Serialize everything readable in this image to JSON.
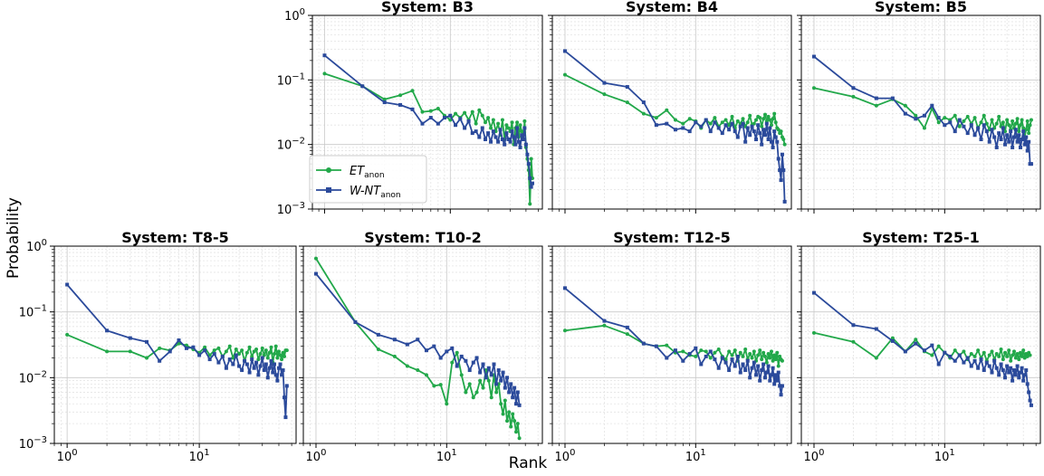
{
  "figure": {
    "ylabel": "Probability",
    "xlabel": "Rank"
  },
  "legend": {
    "entries": [
      {
        "base": "ET",
        "sub": "anon",
        "color": "#22a84a",
        "marker": "circle"
      },
      {
        "base": "W-NT",
        "sub": "anon",
        "color": "#2b4a9b",
        "marker": "square"
      }
    ],
    "placement": "lower-left"
  },
  "axis": {
    "ylim": [
      0.001,
      1
    ],
    "xlim": [
      0.8,
      54
    ],
    "scale": "log",
    "yticks": [
      {
        "value": 1,
        "base": "10",
        "exp": "0"
      },
      {
        "value": 0.1,
        "base": "10",
        "exp": "−1"
      },
      {
        "value": 0.01,
        "base": "10",
        "exp": "−2"
      },
      {
        "value": 0.001,
        "base": "10",
        "exp": "−3"
      }
    ],
    "xticks": [
      {
        "value": 1,
        "base": "10",
        "exp": "0"
      },
      {
        "value": 10,
        "base": "10",
        "exp": "1"
      }
    ],
    "grid": true
  },
  "chart_data": [
    {
      "type": "line",
      "title": "System: B3",
      "x_scale": "log",
      "y_scale": "log",
      "series": [
        {
          "name": "ET_anon",
          "values": [
            0.125,
            0.08,
            0.05,
            0.058,
            0.068,
            0.032,
            0.033,
            0.036,
            0.028,
            0.024,
            0.03,
            0.026,
            0.031,
            0.024,
            0.032,
            0.021,
            0.034,
            0.028,
            0.022,
            0.026,
            0.018,
            0.024,
            0.016,
            0.021,
            0.014,
            0.024,
            0.012,
            0.02,
            0.018,
            0.016,
            0.022,
            0.01,
            0.018,
            0.022,
            0.013,
            0.02,
            0.016,
            0.012,
            0.023,
            0.009,
            0.006,
            0.004,
            0.0012,
            0.006,
            0.003
          ]
        },
        {
          "name": "W-NT_anon",
          "values": [
            0.24,
            0.08,
            0.045,
            0.041,
            0.035,
            0.021,
            0.026,
            0.021,
            0.026,
            0.028,
            0.02,
            0.025,
            0.018,
            0.023,
            0.015,
            0.016,
            0.013,
            0.018,
            0.012,
            0.015,
            0.011,
            0.016,
            0.013,
            0.011,
            0.017,
            0.012,
            0.01,
            0.015,
            0.012,
            0.011,
            0.016,
            0.013,
            0.01,
            0.018,
            0.011,
            0.009,
            0.014,
            0.012,
            0.018,
            0.01,
            0.007,
            0.005,
            0.003,
            0.0022,
            0.0025
          ]
        }
      ]
    },
    {
      "type": "line",
      "title": "System: B4",
      "x_scale": "log",
      "y_scale": "log",
      "series": [
        {
          "name": "ET_anon",
          "values": [
            0.12,
            0.06,
            0.045,
            0.03,
            0.026,
            0.034,
            0.024,
            0.021,
            0.025,
            0.023,
            0.018,
            0.024,
            0.021,
            0.026,
            0.019,
            0.022,
            0.024,
            0.02,
            0.027,
            0.018,
            0.023,
            0.021,
            0.025,
            0.019,
            0.022,
            0.028,
            0.02,
            0.021,
            0.024,
            0.027,
            0.026,
            0.019,
            0.025,
            0.029,
            0.023,
            0.027,
            0.024,
            0.02,
            0.025,
            0.03,
            0.022,
            0.018,
            0.017,
            0.015,
            0.016,
            0.013,
            0.012,
            0.01
          ]
        },
        {
          "name": "W-NT_anon",
          "values": [
            0.28,
            0.09,
            0.078,
            0.045,
            0.02,
            0.021,
            0.017,
            0.018,
            0.016,
            0.022,
            0.019,
            0.024,
            0.016,
            0.022,
            0.018,
            0.015,
            0.02,
            0.017,
            0.021,
            0.016,
            0.013,
            0.019,
            0.021,
            0.011,
            0.018,
            0.014,
            0.019,
            0.016,
            0.012,
            0.02,
            0.015,
            0.01,
            0.017,
            0.014,
            0.021,
            0.012,
            0.018,
            0.011,
            0.009,
            0.016,
            0.013,
            0.011,
            0.006,
            0.004,
            0.0028,
            0.007,
            0.004,
            0.0013
          ]
        }
      ]
    },
    {
      "type": "line",
      "title": "System: B5",
      "x_scale": "log",
      "y_scale": "log",
      "series": [
        {
          "name": "ET_anon",
          "values": [
            0.075,
            0.055,
            0.04,
            0.05,
            0.04,
            0.028,
            0.018,
            0.036,
            0.022,
            0.026,
            0.024,
            0.028,
            0.019,
            0.023,
            0.027,
            0.021,
            0.026,
            0.018,
            0.022,
            0.028,
            0.021,
            0.017,
            0.024,
            0.018,
            0.021,
            0.027,
            0.019,
            0.022,
            0.016,
            0.024,
            0.02,
            0.017,
            0.023,
            0.018,
            0.021,
            0.025,
            0.016,
            0.02,
            0.024,
            0.018,
            0.013,
            0.017,
            0.023,
            0.015,
            0.02,
            0.024
          ]
        },
        {
          "name": "W-NT_anon",
          "values": [
            0.23,
            0.075,
            0.052,
            0.052,
            0.03,
            0.025,
            0.028,
            0.04,
            0.026,
            0.02,
            0.022,
            0.016,
            0.024,
            0.019,
            0.015,
            0.02,
            0.014,
            0.018,
            0.012,
            0.02,
            0.016,
            0.011,
            0.017,
            0.013,
            0.009,
            0.015,
            0.012,
            0.018,
            0.01,
            0.014,
            0.011,
            0.016,
            0.009,
            0.013,
            0.017,
            0.011,
            0.014,
            0.009,
            0.012,
            0.016,
            0.01,
            0.013,
            0.008,
            0.011,
            0.005,
            0.005
          ]
        }
      ]
    },
    {
      "type": "line",
      "title": "System: T8-5",
      "x_scale": "log",
      "y_scale": "log",
      "series": [
        {
          "name": "ET_anon",
          "values": [
            0.045,
            0.025,
            0.025,
            0.02,
            0.028,
            0.026,
            0.033,
            0.031,
            0.027,
            0.024,
            0.029,
            0.022,
            0.026,
            0.028,
            0.021,
            0.025,
            0.03,
            0.02,
            0.027,
            0.023,
            0.026,
            0.018,
            0.024,
            0.029,
            0.021,
            0.025,
            0.027,
            0.019,
            0.023,
            0.028,
            0.022,
            0.026,
            0.02,
            0.024,
            0.029,
            0.017,
            0.023,
            0.03,
            0.02,
            0.025,
            0.022,
            0.019,
            0.024,
            0.021,
            0.026,
            0.026
          ]
        },
        {
          "name": "W-NT_anon",
          "values": [
            0.26,
            0.052,
            0.04,
            0.035,
            0.018,
            0.025,
            0.037,
            0.028,
            0.029,
            0.022,
            0.026,
            0.019,
            0.023,
            0.017,
            0.021,
            0.014,
            0.019,
            0.016,
            0.022,
            0.015,
            0.013,
            0.018,
            0.016,
            0.012,
            0.019,
            0.014,
            0.017,
            0.011,
            0.015,
            0.02,
            0.013,
            0.016,
            0.01,
            0.014,
            0.018,
            0.012,
            0.016,
            0.011,
            0.009,
            0.014,
            0.016,
            0.011,
            0.013,
            0.005,
            0.0025,
            0.0075
          ]
        }
      ]
    },
    {
      "type": "line",
      "title": "System: T10-2",
      "x_scale": "log",
      "y_scale": "log",
      "series": [
        {
          "name": "ET_anon",
          "values": [
            0.65,
            0.07,
            0.027,
            0.021,
            0.015,
            0.013,
            0.011,
            0.0075,
            0.0078,
            0.004,
            0.017,
            0.024,
            0.011,
            0.006,
            0.008,
            0.005,
            0.006,
            0.009,
            0.007,
            0.013,
            0.009,
            0.005,
            0.011,
            0.006,
            0.008,
            0.004,
            0.0028,
            0.0045,
            0.0022,
            0.003,
            0.0018,
            0.0028,
            0.0022,
            0.0015,
            0.002,
            0.0012
          ]
        },
        {
          "name": "W-NT_anon",
          "values": [
            0.38,
            0.07,
            0.045,
            0.038,
            0.032,
            0.038,
            0.026,
            0.03,
            0.02,
            0.025,
            0.028,
            0.015,
            0.021,
            0.018,
            0.013,
            0.017,
            0.02,
            0.012,
            0.016,
            0.01,
            0.014,
            0.011,
            0.016,
            0.008,
            0.013,
            0.009,
            0.012,
            0.007,
            0.01,
            0.006,
            0.008,
            0.005,
            0.007,
            0.004,
            0.006,
            0.0038
          ]
        }
      ]
    },
    {
      "type": "line",
      "title": "System: T12-5",
      "x_scale": "log",
      "y_scale": "log",
      "series": [
        {
          "name": "ET_anon",
          "values": [
            0.052,
            0.062,
            0.046,
            0.033,
            0.03,
            0.031,
            0.024,
            0.025,
            0.022,
            0.021,
            0.026,
            0.025,
            0.02,
            0.024,
            0.027,
            0.021,
            0.019,
            0.025,
            0.022,
            0.026,
            0.018,
            0.024,
            0.021,
            0.027,
            0.019,
            0.023,
            0.02,
            0.025,
            0.018,
            0.022,
            0.026,
            0.019,
            0.024,
            0.021,
            0.017,
            0.023,
            0.02,
            0.025,
            0.018,
            0.022,
            0.019,
            0.024,
            0.015,
            0.021,
            0.019,
            0.018
          ]
        },
        {
          "name": "W-NT_anon",
          "values": [
            0.23,
            0.073,
            0.058,
            0.033,
            0.03,
            0.02,
            0.026,
            0.018,
            0.023,
            0.028,
            0.016,
            0.021,
            0.025,
            0.019,
            0.014,
            0.02,
            0.017,
            0.013,
            0.019,
            0.015,
            0.021,
            0.012,
            0.016,
            0.013,
            0.018,
            0.01,
            0.014,
            0.017,
            0.011,
            0.015,
            0.009,
            0.013,
            0.016,
            0.01,
            0.012,
            0.015,
            0.009,
            0.011,
            0.014,
            0.008,
            0.011,
            0.009,
            0.012,
            0.0075,
            0.0055,
            0.0075
          ]
        }
      ]
    },
    {
      "type": "line",
      "title": "System: T25-1",
      "x_scale": "log",
      "y_scale": "log",
      "series": [
        {
          "name": "ET_anon",
          "values": [
            0.048,
            0.035,
            0.02,
            0.04,
            0.025,
            0.038,
            0.025,
            0.022,
            0.03,
            0.024,
            0.02,
            0.026,
            0.022,
            0.025,
            0.019,
            0.023,
            0.021,
            0.026,
            0.02,
            0.024,
            0.018,
            0.022,
            0.025,
            0.019,
            0.023,
            0.021,
            0.027,
            0.019,
            0.024,
            0.021,
            0.026,
            0.018,
            0.022,
            0.025,
            0.02,
            0.023,
            0.019,
            0.024,
            0.021,
            0.026,
            0.02,
            0.023,
            0.021,
            0.024,
            0.022
          ]
        },
        {
          "name": "W-NT_anon",
          "values": [
            0.195,
            0.063,
            0.055,
            0.036,
            0.025,
            0.033,
            0.026,
            0.031,
            0.016,
            0.024,
            0.021,
            0.018,
            0.022,
            0.017,
            0.02,
            0.015,
            0.018,
            0.014,
            0.019,
            0.013,
            0.017,
            0.015,
            0.012,
            0.018,
            0.014,
            0.011,
            0.016,
            0.013,
            0.01,
            0.015,
            0.012,
            0.014,
            0.009,
            0.013,
            0.011,
            0.015,
            0.01,
            0.012,
            0.014,
            0.009,
            0.011,
            0.013,
            0.008,
            0.006,
            0.0045,
            0.0038
          ]
        }
      ]
    }
  ]
}
